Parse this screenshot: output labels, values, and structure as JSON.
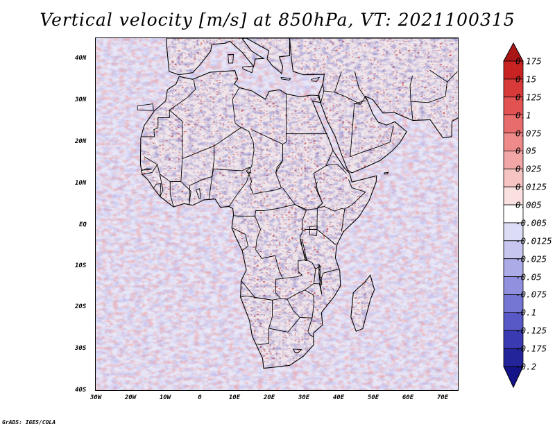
{
  "title": "Vertical velocity [m/s] at 850hPa, VT: 2021100315",
  "credit": "GrADS: IGES/COLA",
  "y_axis_labels": [
    "40N",
    "30N",
    "20N",
    "10N",
    "EQ",
    "10S",
    "20S",
    "30S",
    "40S"
  ],
  "x_axis_labels": [
    "30W",
    "20W",
    "10W",
    "0",
    "10E",
    "20E",
    "30E",
    "40E",
    "50E",
    "60E",
    "70E"
  ],
  "colorbar": {
    "labels": [
      "0.175",
      "0.15",
      "0.125",
      "0.1",
      "0.075",
      "0.05",
      "0.025",
      "0.0125",
      "0.005",
      "-0.005",
      "-0.0125",
      "-0.025",
      "-0.05",
      "-0.075",
      "-0.1",
      "-0.125",
      "-0.175",
      "-0.2"
    ],
    "colors": [
      "#a81616",
      "#c82222",
      "#d83a3a",
      "#e25252",
      "#e96c6c",
      "#ef8a8a",
      "#f3a6a6",
      "#f7c4c4",
      "#fae0e0",
      "#ffffff",
      "#dcdcf6",
      "#c6c6f0",
      "#ababe8",
      "#9090df",
      "#7575d4",
      "#5858c6",
      "#3a3ab2",
      "#24249a",
      "#141488"
    ]
  },
  "map": {
    "lon_range": [
      -30,
      75
    ],
    "lat_range": [
      -40,
      45
    ],
    "ocean_tint": "#e7e7f8",
    "land_tint": "#efe6ec",
    "boundary_color": "#000000"
  }
}
